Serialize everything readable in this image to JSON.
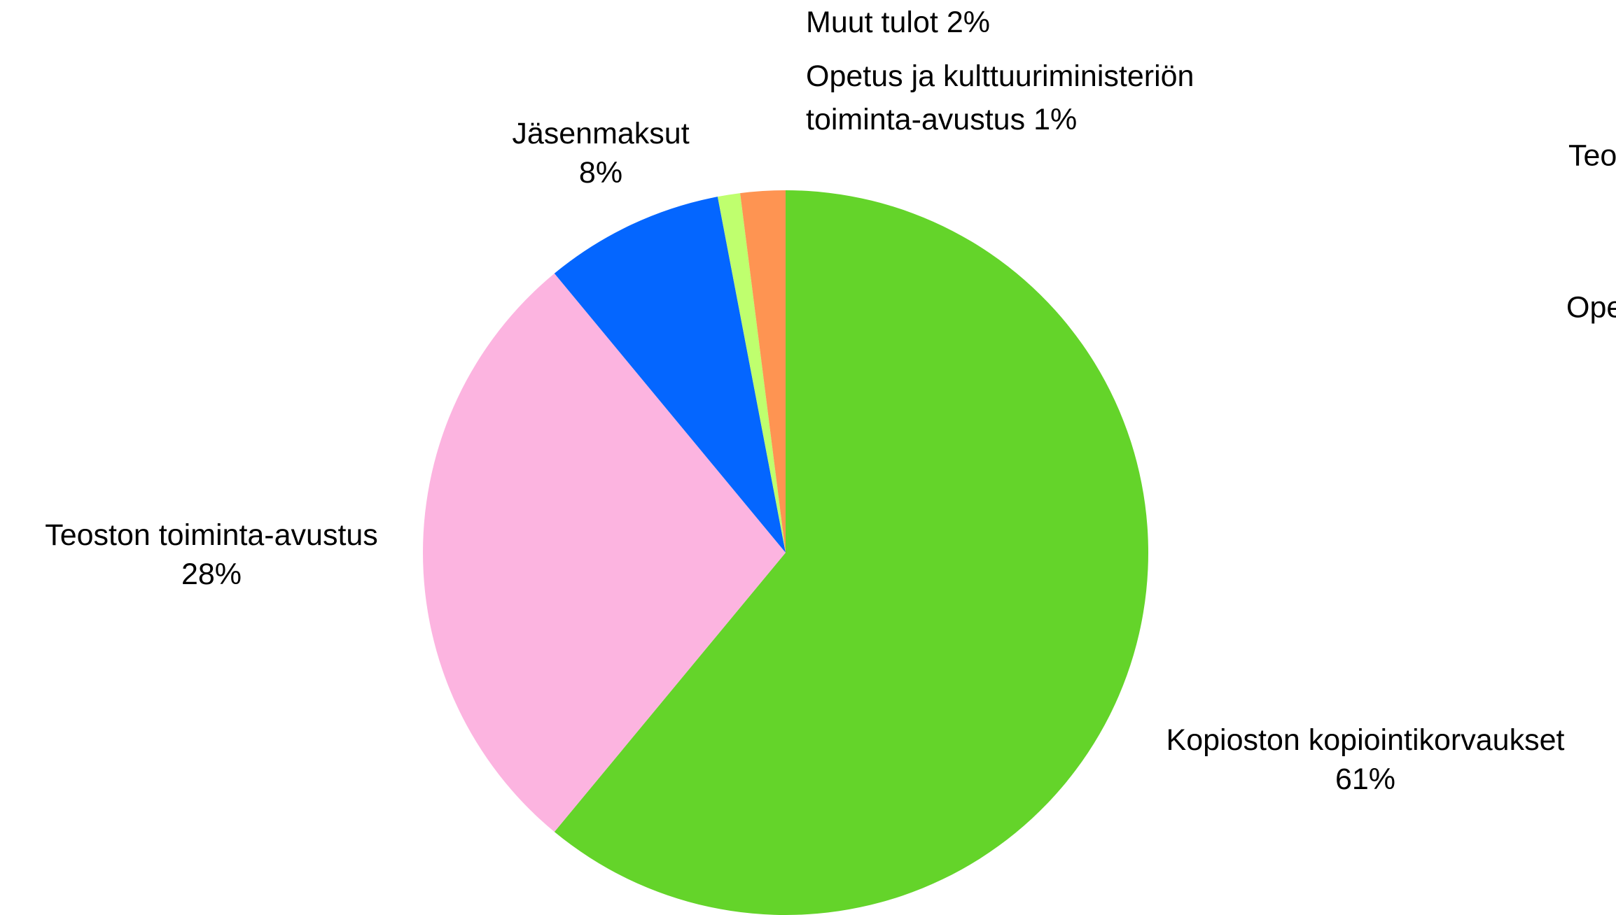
{
  "chart_data": {
    "type": "pie",
    "categories": [
      "Kopioston kopiointikorvaukset",
      "Teoston toiminta-avustus",
      "Jäsenmaksut",
      "Opetus ja kulttuuriministeriön\ntoiminta-avustus",
      "Muut tulot"
    ],
    "values": [
      61,
      28,
      8,
      1,
      2
    ],
    "value_labels": [
      "61%",
      "28%",
      "8%",
      "1%",
      "2%"
    ],
    "colors": [
      "#64d42a",
      "#fcb4e0",
      "#0466ff",
      "#bfff6e",
      "#fe9452"
    ],
    "clipped_labels": [
      "Teo",
      "Ope"
    ]
  }
}
